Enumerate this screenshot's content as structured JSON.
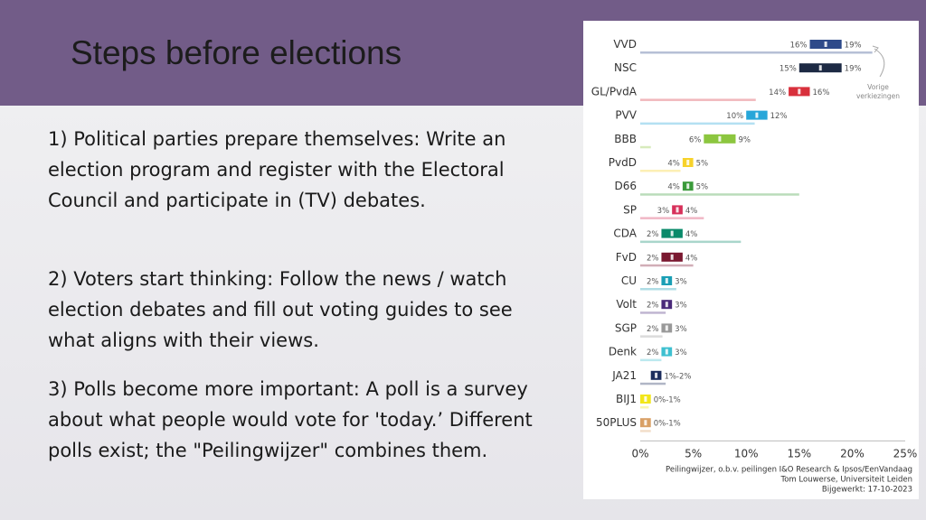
{
  "slide": {
    "title": "Steps before elections",
    "paragraphs": [
      "1) Political parties prepare themselves: Write an election program and register with the Electoral Council and participate in (TV) debates.",
      "2) Voters start thinking: Follow the news / watch election debates and fill out voting guides to see what aligns with their views.",
      "3) Polls become more important: A poll is a survey about what people would vote for 'today.’ Different polls exist; the \"Peilingwijzer\" combines them."
    ]
  },
  "chart_data": {
    "type": "bar",
    "categories": [
      "VVD",
      "NSC",
      "GL/PvdA",
      "PVV",
      "BBB",
      "PvdD",
      "D66",
      "SP",
      "CDA",
      "FvD",
      "CU",
      "Volt",
      "SGP",
      "Denk",
      "JA21",
      "BIJ1",
      "50PLUS"
    ],
    "series": [
      {
        "values_low": [
          16,
          15,
          14,
          10,
          6,
          4,
          4,
          3,
          2,
          2,
          2,
          2,
          2,
          2,
          1,
          0,
          0
        ],
        "values_high": [
          19,
          19,
          16,
          12,
          9,
          5,
          5,
          4,
          4,
          4,
          3,
          3,
          3,
          3,
          2,
          1,
          1
        ]
      }
    ],
    "range_labels_low": [
      "16%",
      "15%",
      "14%",
      "10%",
      "6%",
      "4%",
      "4%",
      "3%",
      "2%",
      "2%",
      "2%",
      "2%",
      "2%",
      "2%",
      "",
      "",
      ""
    ],
    "range_labels_high": [
      "19%",
      "19%",
      "16%",
      "12%",
      "9%",
      "5%",
      "5%",
      "4%",
      "4%",
      "4%",
      "3%",
      "3%",
      "3%",
      "3%",
      "1%-2%",
      "0%-1%",
      "0%-1%"
    ],
    "previous_election": [
      21.9,
      0,
      10.9,
      10.8,
      1.0,
      3.8,
      15.0,
      6.0,
      9.5,
      5.0,
      3.4,
      2.4,
      2.1,
      2.0,
      2.4,
      0.8,
      1.0
    ],
    "colors": [
      "#2e4a8a",
      "#1d2a44",
      "#d8303c",
      "#27a6d9",
      "#8cc63f",
      "#f7d22b",
      "#3a9a3a",
      "#d7305a",
      "#0a8a6a",
      "#7a1830",
      "#1a9fb5",
      "#4a2a7a",
      "#999999",
      "#3ec0d0",
      "#1c2d5c",
      "#f2e61a",
      "#d9a066"
    ],
    "ylim": [
      0,
      25
    ],
    "x_ticks": [
      "0%",
      "5%",
      "10%",
      "15%",
      "20%",
      "25%"
    ],
    "annotation": "Vorige verkiezingen",
    "credits": [
      "Peilingwijzer, o.b.v. peilingen I&O Research & Ipsos/EenVandaag",
      "Tom Louwerse, Universiteit Leiden",
      "Bijgewerkt: 17-10-2023"
    ]
  }
}
